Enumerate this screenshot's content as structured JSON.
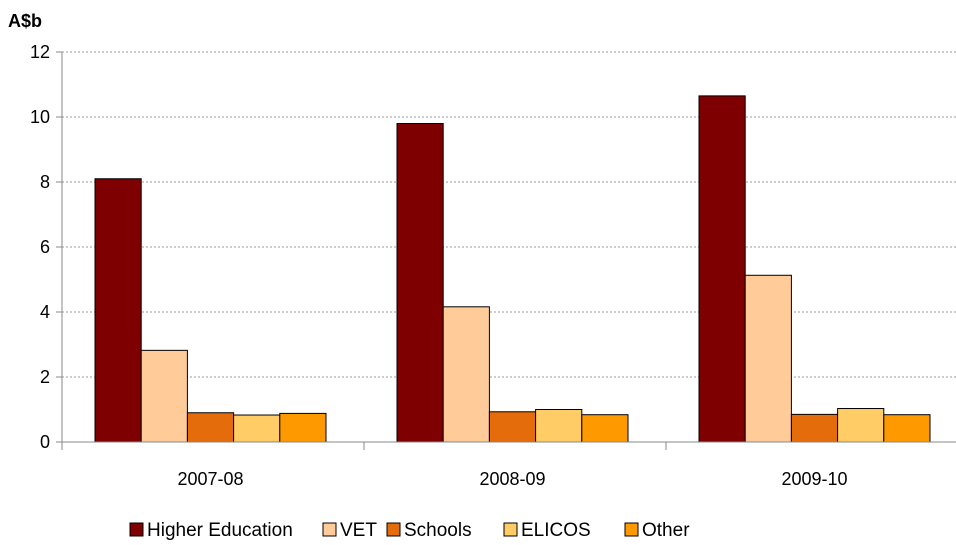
{
  "chart_data": {
    "type": "bar",
    "unit_label": "A$b",
    "categories": [
      "2007-08",
      "2008-09",
      "2009-10"
    ],
    "series": [
      {
        "name": "Higher Education",
        "color": "#7f0000",
        "values": [
          8.1,
          9.8,
          10.65
        ]
      },
      {
        "name": "VET",
        "color": "#ffcc99",
        "values": [
          2.82,
          4.16,
          5.13
        ]
      },
      {
        "name": "Schools",
        "color": "#e46c0a",
        "values": [
          0.9,
          0.93,
          0.85
        ]
      },
      {
        "name": "ELICOS",
        "color": "#ffcc66",
        "values": [
          0.83,
          1.0,
          1.03
        ]
      },
      {
        "name": "Other",
        "color": "#ff9900",
        "values": [
          0.88,
          0.84,
          0.84
        ]
      }
    ],
    "ylim": [
      0,
      12
    ],
    "yticks": [
      "0",
      "2",
      "4",
      "6",
      "8",
      "10",
      "12"
    ],
    "grid": true,
    "legend_position": "bottom"
  }
}
